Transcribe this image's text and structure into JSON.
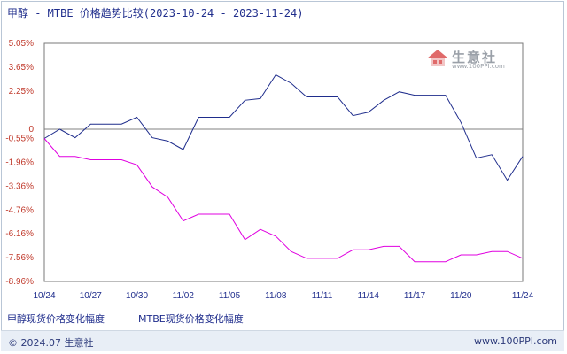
{
  "title": "甲醇 - MTBE 价格趋势比较(2023-10-24 - 2023-11-24)",
  "watermark": {
    "text": "生意社",
    "url": "www.100PPI.com"
  },
  "footer": {
    "left": "© 2024.07 生意社",
    "right": "www.100PPI.com"
  },
  "colors": {
    "series1": "#1f2d8c",
    "series2": "#e000e0",
    "zero_line": "#808080",
    "grid": "#d9d9d9"
  },
  "chart_data": {
    "type": "line",
    "title": "甲醇 - MTBE 价格趋势比较(2023-10-24 - 2023-11-24)",
    "xlabel": "",
    "ylabel": "",
    "ylim": [
      -8.96,
      5.05
    ],
    "yticks": [
      "5.05%",
      "3.65%",
      "2.25%",
      "0",
      "-0.55%",
      "-1.96%",
      "-3.36%",
      "-4.76%",
      "-6.16%",
      "-7.56%",
      "-8.96%"
    ],
    "ytick_values": [
      5.05,
      3.65,
      2.25,
      0,
      -0.55,
      -1.96,
      -3.36,
      -4.76,
      -6.16,
      -7.56,
      -8.96
    ],
    "xticks": [
      "10/24",
      "10/27",
      "10/30",
      "11/02",
      "11/05",
      "11/08",
      "11/11",
      "11/14",
      "11/17",
      "11/20",
      "11/24"
    ],
    "x": [
      "10/24",
      "10/25",
      "10/26",
      "10/27",
      "10/28",
      "10/29",
      "10/30",
      "10/31",
      "11/01",
      "11/02",
      "11/03",
      "11/04",
      "11/05",
      "11/06",
      "11/07",
      "11/08",
      "11/09",
      "11/10",
      "11/11",
      "11/12",
      "11/13",
      "11/14",
      "11/15",
      "11/16",
      "11/17",
      "11/18",
      "11/19",
      "11/20",
      "11/21",
      "11/22",
      "11/23",
      "11/24"
    ],
    "legend_position": "bottom",
    "grid": false,
    "series": [
      {
        "name": "甲醇现货价格变化幅度",
        "values": [
          -0.55,
          0.0,
          -0.5,
          0.3,
          0.3,
          0.3,
          0.7,
          -0.5,
          -0.7,
          -1.2,
          0.7,
          0.7,
          0.7,
          1.7,
          1.8,
          3.2,
          2.7,
          1.9,
          1.9,
          1.9,
          0.8,
          1.0,
          1.7,
          2.2,
          2.0,
          2.0,
          2.0,
          0.4,
          -1.7,
          -1.5,
          -3.0,
          -1.6
        ]
      },
      {
        "name": "MTBE现货价格变化幅度",
        "values": [
          -0.55,
          -1.6,
          -1.6,
          -1.8,
          -1.8,
          -1.8,
          -2.1,
          -3.4,
          -4.0,
          -5.4,
          -5.0,
          -5.0,
          -5.0,
          -6.5,
          -5.9,
          -6.3,
          -7.2,
          -7.6,
          -7.6,
          -7.6,
          -7.1,
          -7.1,
          -6.9,
          -6.9,
          -7.8,
          -7.8,
          -7.8,
          -7.4,
          -7.4,
          -7.2,
          -7.2,
          -7.6
        ]
      }
    ]
  }
}
